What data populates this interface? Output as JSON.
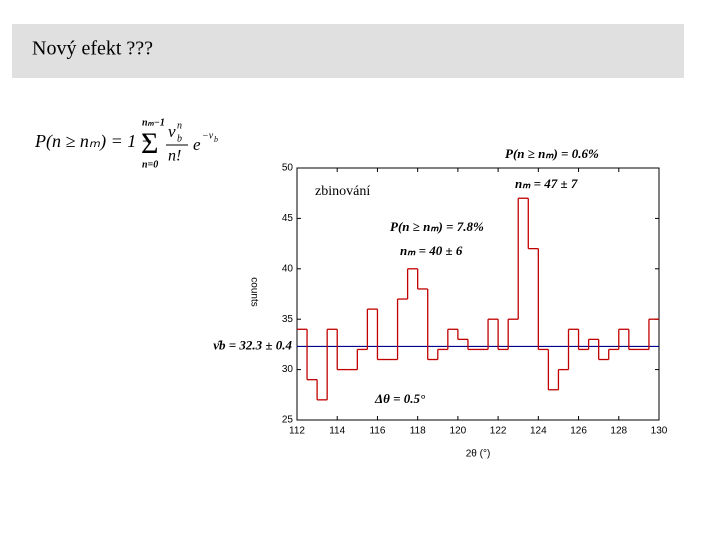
{
  "slide_title": "Nový efekt ???",
  "formula": {
    "lhs": "P(n ≥ nₘ) = 1 −",
    "sum": "Σ",
    "sum_from": "n=0",
    "sum_to": "nₘ−1",
    "num": "ν",
    "num_sup": "n",
    "num_sub": "b",
    "den": "n!",
    "exp_base": "e",
    "exp": "−ν",
    "exp_sub": "b"
  },
  "chart_data": {
    "type": "histogram",
    "xlabel": "2θ (°)",
    "ylabel": "counts",
    "bins": [
      112,
      112.5,
      113,
      113.5,
      114,
      114.5,
      115,
      115.5,
      116,
      116.5,
      117,
      117.5,
      118,
      118.5,
      119,
      119.5,
      120,
      120.5,
      121,
      121.5,
      122,
      122.5,
      123,
      123.5,
      124,
      124.5,
      125,
      125.5,
      126,
      126.5,
      127,
      127.5,
      128,
      128.5,
      129,
      129.5,
      130
    ],
    "counts": [
      34,
      29,
      27,
      34,
      30,
      30,
      32,
      36,
      31,
      31,
      37,
      40,
      38,
      31,
      32,
      34,
      33,
      32,
      32,
      35,
      32,
      35,
      47,
      42,
      32,
      28,
      30,
      34,
      32,
      33,
      31,
      32,
      34,
      32,
      32,
      35
    ],
    "color": "#c00000",
    "xlim": [
      112,
      130
    ],
    "ylim": [
      25,
      50
    ],
    "xticks": [
      112,
      114,
      116,
      118,
      120,
      122,
      124,
      126,
      128,
      130
    ],
    "yticks": [
      25,
      30,
      35,
      40,
      45,
      50
    ],
    "reference_line": {
      "value": 32.3,
      "label": "ν̂b = 32.3 ± 0.4",
      "color": "#00008b"
    },
    "annotations": [
      "zbinování",
      "P(n ≥ nₘ) = 0.6%",
      "nₘ = 47 ± 7",
      "P(n ≥ nₘ) = 7.8%",
      "nₘ = 40 ± 6",
      "Δθ = 0.5°"
    ]
  }
}
